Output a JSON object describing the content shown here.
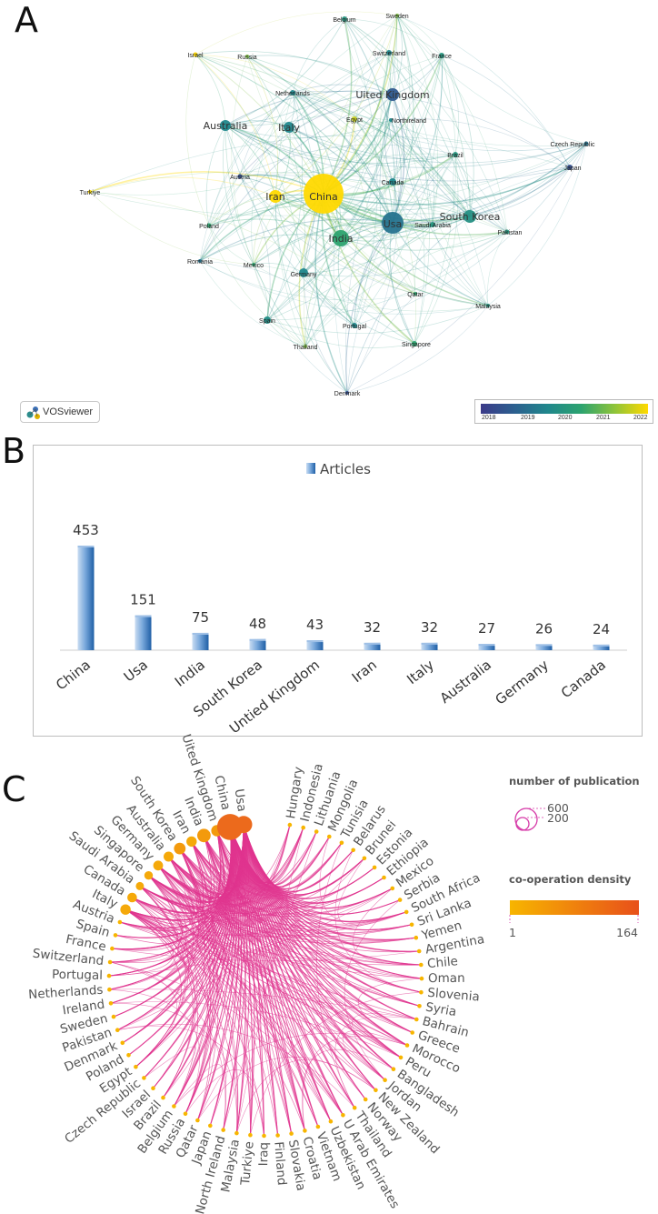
{
  "panels": {
    "a": "A",
    "b": "B",
    "c": "C"
  },
  "panel_a": {
    "logo_text": "VOSviewer",
    "legend_years": [
      "2018",
      "2019",
      "2020",
      "2021",
      "2022"
    ],
    "nodes": [
      {
        "name": "China",
        "size": 22,
        "year": 2022
      },
      {
        "name": "Usa",
        "size": 12,
        "year": 2019.5
      },
      {
        "name": "India",
        "size": 9,
        "year": 2021
      },
      {
        "name": "Iran",
        "size": 7,
        "year": 2022
      },
      {
        "name": "United Kingdom",
        "size": 7,
        "year": 2018.8
      },
      {
        "name": "Italy",
        "size": 6,
        "year": 2020
      },
      {
        "name": "Australia",
        "size": 6,
        "year": 2020
      },
      {
        "name": "South Korea",
        "size": 7,
        "year": 2020.3
      },
      {
        "name": "Germany",
        "size": 5,
        "year": 2020
      },
      {
        "name": "Canada",
        "size": 4,
        "year": 2020
      },
      {
        "name": "Spain",
        "size": 4,
        "year": 2020.2
      },
      {
        "name": "Singapore",
        "size": 3,
        "year": 2021
      },
      {
        "name": "Brazil",
        "size": 3,
        "year": 2020.5
      },
      {
        "name": "Egypt",
        "size": 3,
        "year": 2021.8
      },
      {
        "name": "Japan",
        "size": 3,
        "year": 2018.5
      },
      {
        "name": "Portugal",
        "size": 3,
        "year": 2020
      },
      {
        "name": "Saudi Arabia",
        "size": 3,
        "year": 2020.5
      },
      {
        "name": "Pakistan",
        "size": 2.5,
        "year": 2020.5
      },
      {
        "name": "Switzerland",
        "size": 3,
        "year": 2020
      },
      {
        "name": "France",
        "size": 3,
        "year": 2020.5
      },
      {
        "name": "Belgium",
        "size": 3,
        "year": 2020.5
      },
      {
        "name": "Sweden",
        "size": 2,
        "year": 2021.5
      },
      {
        "name": "Netherlands",
        "size": 3,
        "year": 2020
      },
      {
        "name": "Russia",
        "size": 2,
        "year": 2021.5
      },
      {
        "name": "Israel",
        "size": 2.5,
        "year": 2022
      },
      {
        "name": "Austria",
        "size": 2.5,
        "year": 2018.5
      },
      {
        "name": "Turkiye",
        "size": 2,
        "year": 2022
      },
      {
        "name": "Poland",
        "size": 2.5,
        "year": 2021
      },
      {
        "name": "Romania",
        "size": 2,
        "year": 2019.5
      },
      {
        "name": "Mexico",
        "size": 2,
        "year": 2021
      },
      {
        "name": "Thailand",
        "size": 2,
        "year": 2021.5
      },
      {
        "name": "Denmark",
        "size": 2,
        "year": 2018.5
      },
      {
        "name": "Qatar",
        "size": 2,
        "year": 2021
      },
      {
        "name": "Malaysia",
        "size": 2,
        "year": 2020.5
      },
      {
        "name": "Czech Republic",
        "size": 2.5,
        "year": 2019.5
      },
      {
        "name": "Northireland",
        "size": 2,
        "year": 2020
      }
    ],
    "node_labels": {
      "China": "China",
      "Usa": "Usa",
      "India": "India",
      "Iran": "Iran",
      "United Kingdom": "Uited Kingdom",
      "Italy": "Italy",
      "Australia": "Australia",
      "South Korea": "South Korea",
      "Germany": "Germany",
      "Canada": "Canada",
      "Spain": "Spain",
      "Singapore": "Singapore",
      "Brazil": "Brazil",
      "Egypt": "Egypt",
      "Japan": "Japan",
      "Portugal": "Portugal",
      "Saudi Arabia": "Saudi Arabia",
      "Pakistan": "Pakistan",
      "Switzerland": "Switzerland",
      "France": "France",
      "Belgium": "Belgium",
      "Sweden": "Sweden",
      "Netherlands": "Netherlands",
      "Russia": "Russia",
      "Israel": "Israel",
      "Austria": "Austria",
      "Turkiye": "Turkiye",
      "Poland": "Poland",
      "Romania": "Romania",
      "Mexico": "Mexico",
      "Thailand": "Thailand",
      "Denmark": "Denmark",
      "Qatar": "Qatar",
      "Malaysia": "Malaysia",
      "Czech Republic": "Czech Republic",
      "Northireland": "Northireland"
    }
  },
  "chart_data": [
    {
      "type": "bar",
      "legend": "Articles",
      "categories": [
        "China",
        "Usa",
        "India",
        "South Korea",
        "Untied Kingdom",
        "Iran",
        "Italy",
        "Australia",
        "Germany",
        "Canada"
      ],
      "values": [
        453,
        151,
        75,
        48,
        43,
        32,
        32,
        27,
        26,
        24
      ],
      "data_labels": true,
      "color": "#3f7fc2"
    },
    {
      "type": "chord",
      "nodes": [
        "Hungary",
        "Indonesia",
        "Lithuania",
        "Mongolia",
        "Tunisia",
        "Belarus",
        "Brunei",
        "Estonia",
        "Ethiopia",
        "Mexico",
        "Serbia",
        "South Africa",
        "Sri Lanka",
        "Yemen",
        "Argentina",
        "Chile",
        "Oman",
        "Slovenia",
        "Syria",
        "Bahrain",
        "Greece",
        "Morocco",
        "Peru",
        "Bangladesh",
        "Jordan",
        "New Zealand",
        "Norway",
        "Thailand",
        "U Arab Emirates",
        "Uzbekistan",
        "Vietnam",
        "Croatia",
        "Slovakia",
        "Finland",
        "Iraq",
        "Turkiye",
        "Malaysia",
        "North Ireland",
        "Japan",
        "Qatar",
        "Russia",
        "Belgium",
        "Brazil",
        "Israel",
        "Czech Republic",
        "Egypt",
        "Poland",
        "Denmark",
        "Pakistan",
        "Sweden",
        "Ireland",
        "Netherlands",
        "Portugal",
        "Switzerland",
        "France",
        "Spain",
        "Austria",
        "Italy",
        "Canada",
        "Saudi Arabia",
        "Singapore",
        "Germany",
        "Australia",
        "South Korea",
        "Iran",
        "India",
        "Uited Kingdom",
        "China",
        "Usa"
      ],
      "publications": {
        "China": 453,
        "Usa": 151,
        "India": 75,
        "Iran": 32,
        "South Korea": 48,
        "Uited Kingdom": 43,
        "Australia": 27,
        "Germany": 26,
        "Singapore": 15,
        "Saudi Arabia": 12,
        "Canada": 24,
        "Italy": 32
      },
      "legend": {
        "size_title": "number of publication",
        "size_values": [
          "600",
          "200"
        ],
        "color_title": "co-operation density",
        "color_min": "1",
        "color_max": "164",
        "colors": [
          "#f7b500",
          "#e8501a"
        ]
      },
      "edge_color": "#e0348f"
    }
  ]
}
